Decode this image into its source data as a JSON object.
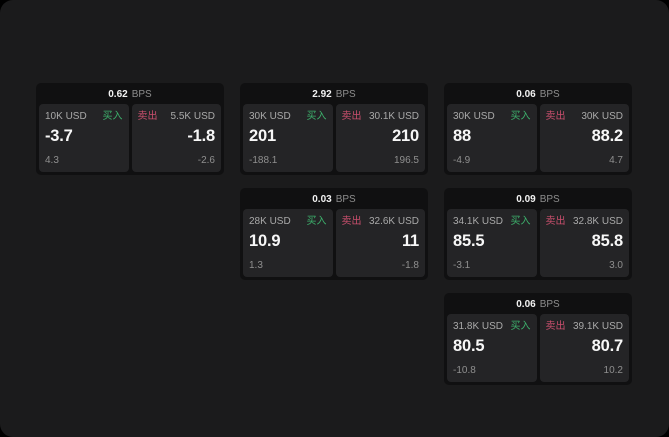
{
  "labels": {
    "bps_unit": "BPS",
    "buy": "买入",
    "sell": "卖出"
  },
  "colors": {
    "background": "#000000",
    "surface": "#1b1b1c",
    "card": "#101011",
    "panel": "#242426",
    "buy": "#3db16c",
    "sell": "#c94f6d"
  },
  "cards": [
    {
      "row": 1,
      "col": 1,
      "bps": "0.62",
      "buy": {
        "size": "10K USD",
        "price": "-3.7",
        "delta": "4.3"
      },
      "sell": {
        "size": "5.5K USD",
        "price": "-1.8",
        "delta": "-2.6"
      }
    },
    {
      "row": 1,
      "col": 2,
      "bps": "2.92",
      "buy": {
        "size": "30K USD",
        "price": "201",
        "delta": "-188.1"
      },
      "sell": {
        "size": "30.1K USD",
        "price": "210",
        "delta": "196.5"
      }
    },
    {
      "row": 1,
      "col": 3,
      "bps": "0.06",
      "buy": {
        "size": "30K USD",
        "price": "88",
        "delta": "-4.9"
      },
      "sell": {
        "size": "30K USD",
        "price": "88.2",
        "delta": "4.7"
      }
    },
    {
      "row": 2,
      "col": 2,
      "bps": "0.03",
      "buy": {
        "size": "28K USD",
        "price": "10.9",
        "delta": "1.3"
      },
      "sell": {
        "size": "32.6K USD",
        "price": "11",
        "delta": "-1.8"
      }
    },
    {
      "row": 2,
      "col": 3,
      "bps": "0.09",
      "buy": {
        "size": "34.1K USD",
        "price": "85.5",
        "delta": "-3.1"
      },
      "sell": {
        "size": "32.8K USD",
        "price": "85.8",
        "delta": "3.0"
      }
    },
    {
      "row": 3,
      "col": 3,
      "bps": "0.06",
      "buy": {
        "size": "31.8K USD",
        "price": "80.5",
        "delta": "-10.8"
      },
      "sell": {
        "size": "39.1K USD",
        "price": "80.7",
        "delta": "10.2"
      }
    }
  ]
}
